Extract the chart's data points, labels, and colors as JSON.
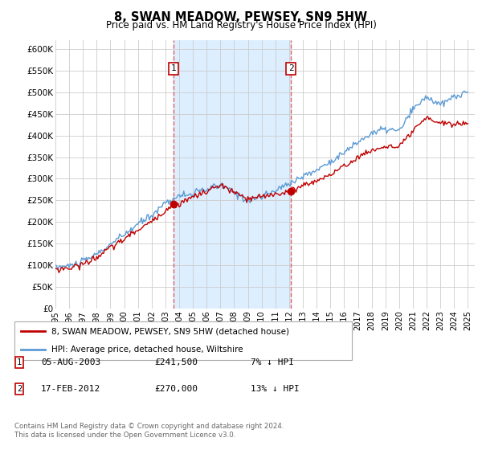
{
  "title": "8, SWAN MEADOW, PEWSEY, SN9 5HW",
  "subtitle": "Price paid vs. HM Land Registry's House Price Index (HPI)",
  "ylabel_ticks": [
    "£0",
    "£50K",
    "£100K",
    "£150K",
    "£200K",
    "£250K",
    "£300K",
    "£350K",
    "£400K",
    "£450K",
    "£500K",
    "£550K",
    "£600K"
  ],
  "ytick_values": [
    0,
    50000,
    100000,
    150000,
    200000,
    250000,
    300000,
    350000,
    400000,
    450000,
    500000,
    550000,
    600000
  ],
  "ylim": [
    0,
    620000
  ],
  "xlim_start": 1995.0,
  "xlim_end": 2025.5,
  "sale1_x": 2003.58,
  "sale1_y": 241500,
  "sale1_label": "1",
  "sale1_date": "05-AUG-2003",
  "sale1_price": "£241,500",
  "sale1_hpi": "7% ↓ HPI",
  "sale2_x": 2012.12,
  "sale2_y": 270000,
  "sale2_label": "2",
  "sale2_date": "17-FEB-2012",
  "sale2_price": "£270,000",
  "sale2_hpi": "13% ↓ HPI",
  "hpi_line_color": "#5b9bd5",
  "price_line_color": "#c00000",
  "sale_marker_color": "#c00000",
  "vline_color": "#e06060",
  "shade_color": "#ddeeff",
  "grid_color": "#cccccc",
  "bg_color": "#ffffff",
  "legend_label_red": "8, SWAN MEADOW, PEWSEY, SN9 5HW (detached house)",
  "legend_label_blue": "HPI: Average price, detached house, Wiltshire",
  "footer": "Contains HM Land Registry data © Crown copyright and database right 2024.\nThis data is licensed under the Open Government Licence v3.0.",
  "xtick_years": [
    1995,
    1996,
    1997,
    1998,
    1999,
    2000,
    2001,
    2002,
    2003,
    2004,
    2005,
    2006,
    2007,
    2008,
    2009,
    2010,
    2011,
    2012,
    2013,
    2014,
    2015,
    2016,
    2017,
    2018,
    2019,
    2020,
    2021,
    2022,
    2023,
    2024,
    2025
  ]
}
